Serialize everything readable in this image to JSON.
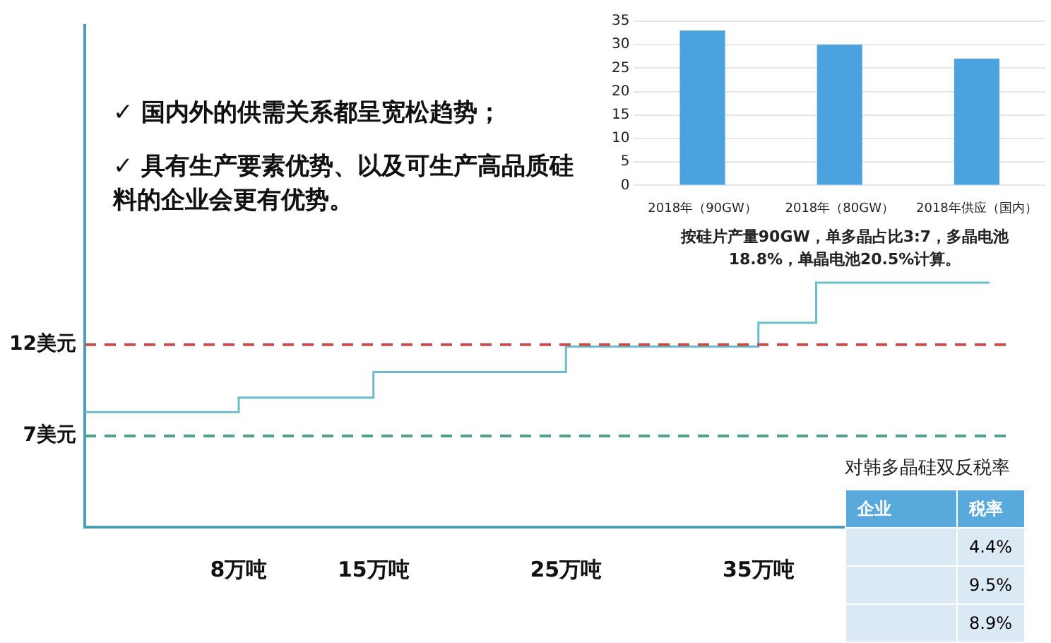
{
  "chart_data": [
    {
      "type": "step",
      "annotations": [
        "✓ 国内外的供需关系都呈宽松趋势；",
        "✓ 具有生产要素优势、以及可生产高品质硅料的企业会更有优势。"
      ],
      "x": [
        0,
        8,
        15,
        25,
        35,
        38,
        47
      ],
      "values": [
        8.3,
        9.1,
        10.5,
        11.9,
        13.2,
        15.4,
        15.4
      ],
      "color": "#6bbccc",
      "xlim": [
        0,
        48
      ],
      "xticks": [
        {
          "value": 8,
          "label": "8万吨"
        },
        {
          "value": 15,
          "label": "15万吨"
        },
        {
          "value": 25,
          "label": "25万吨"
        },
        {
          "value": 35,
          "label": "35万吨"
        }
      ],
      "ylim": [
        2,
        29.5
      ],
      "tick_labels": "x",
      "grid": false,
      "ref_lines": [
        {
          "axis": "y",
          "value": 12,
          "label": "12美元",
          "color": "#c0504d",
          "line_style": "dashed"
        },
        {
          "axis": "y",
          "value": 7,
          "label": "7美元",
          "color": "#4fa38a",
          "line_style": "dashed"
        }
      ]
    },
    {
      "type": "bar",
      "categories": [
        "2018年（90GW）",
        "2018年（80GW）",
        "2018年供应（国内）"
      ],
      "values": [
        33,
        30,
        27
      ],
      "color": "#4aa3df",
      "ylim": [
        0,
        35
      ],
      "yticks": [
        0,
        5,
        10,
        15,
        20,
        25,
        30,
        35
      ],
      "grid": "y",
      "annotations": [
        "按硅片产量90GW，单多晶占比3:7，多晶电池18.8%，单晶电池20.5%计算。"
      ]
    },
    {
      "type": "other",
      "title": "对韩多晶硅双反税率",
      "xlabel": "企业",
      "ylabel": "税率",
      "categories": [
        null,
        null,
        null
      ],
      "values": [
        4.4,
        9.5,
        8.9
      ],
      "value_labels": [
        "4.4%",
        "9.5%",
        "8.9%"
      ]
    }
  ]
}
